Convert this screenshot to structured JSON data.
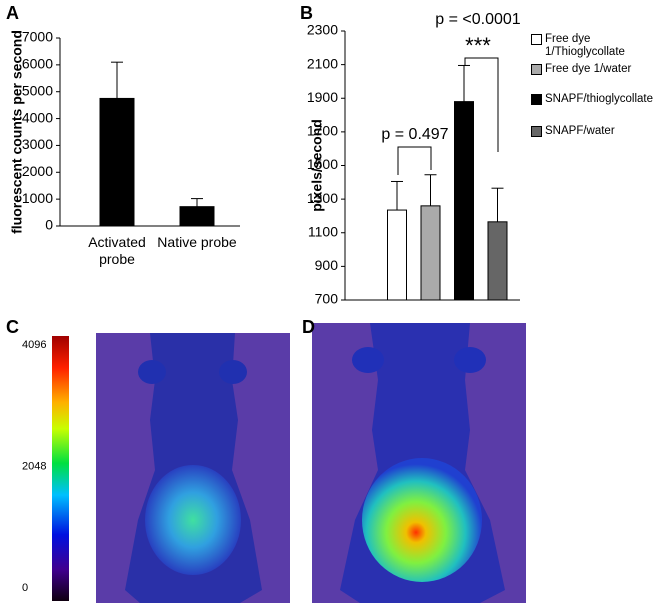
{
  "panel_labels": [
    "A",
    "B",
    "C",
    "D"
  ],
  "chart_data": [
    {
      "type": "bar",
      "ylabel": "fluorescent counts per second",
      "categories": [
        "Activated probe",
        "Native probe"
      ],
      "values": [
        4750,
        720
      ],
      "errors": [
        1350,
        300
      ],
      "color": "#000000",
      "ylim": [
        0,
        7000
      ],
      "yticks": [
        0,
        1000,
        2000,
        3000,
        4000,
        5000,
        6000,
        7000
      ]
    },
    {
      "type": "bar",
      "ylabel": "pixels/second",
      "series": [
        {
          "name": "Free dye 1/Thioglycollate",
          "color": "#ffffff",
          "values": [
            1235
          ],
          "errors": [
            170
          ]
        },
        {
          "name": "Free dye 1/water",
          "color": "#aaaaaa",
          "values": [
            1260
          ],
          "errors": [
            185
          ]
        },
        {
          "name": "SNAPF/thioglycollate",
          "color": "#000000",
          "values": [
            1880
          ],
          "errors": [
            215
          ]
        },
        {
          "name": "SNAPF/water",
          "color": "#666666",
          "values": [
            1165
          ],
          "errors": [
            200
          ]
        }
      ],
      "ylim": [
        700,
        2300
      ],
      "yticks": [
        700,
        900,
        1100,
        1300,
        1500,
        1700,
        1900,
        2100,
        2300
      ],
      "legend": "right",
      "annotations": [
        "p = 0.497",
        "p = <0.0001",
        "***"
      ]
    }
  ],
  "colorbar": {
    "lim": [
      0,
      4096
    ],
    "ticks": [
      0,
      2048,
      4096
    ]
  }
}
